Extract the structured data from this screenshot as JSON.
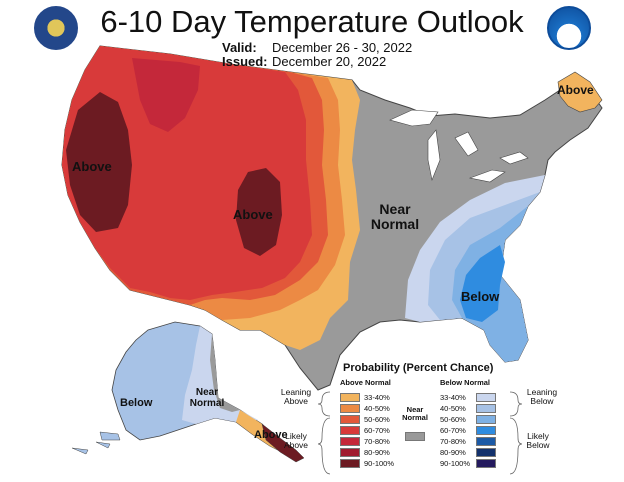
{
  "title": "6-10 Day Temperature Outlook",
  "valid_label": "Valid:",
  "valid_dates": "December 26 - 30, 2022",
  "issued_label": "Issued:",
  "issued_date": "December 20, 2022",
  "map_labels": {
    "above_west": "Above",
    "above_rockies": "Above",
    "above_maine": "Above",
    "near_normal_central": "Near Normal",
    "below_southeast": "Below",
    "below_alaska": "Below",
    "near_normal_alaska": "Near Normal",
    "above_alaska": "Above"
  },
  "legend": {
    "title": "Probability (Percent Chance)",
    "above_header": "Above Normal",
    "below_header": "Below Normal",
    "near_normal": "Near Normal",
    "leaning_above": "Leaning Above",
    "likely_above": "Likely Above",
    "leaning_below": "Leaning Below",
    "likely_below": "Likely Below",
    "above_bins": [
      {
        "label": "33-40%",
        "color": "#f2b45e"
      },
      {
        "label": "40-50%",
        "color": "#ec8a44"
      },
      {
        "label": "50-60%",
        "color": "#e2583a"
      },
      {
        "label": "60-70%",
        "color": "#d83a3a"
      },
      {
        "label": "70-80%",
        "color": "#c4283a"
      },
      {
        "label": "80-90%",
        "color": "#a01c30"
      },
      {
        "label": "90-100%",
        "color": "#6c1b22"
      }
    ],
    "below_bins": [
      {
        "label": "33-40%",
        "color": "#cad6ee"
      },
      {
        "label": "40-50%",
        "color": "#a7c2e6"
      },
      {
        "label": "50-60%",
        "color": "#7fb1e4"
      },
      {
        "label": "60-70%",
        "color": "#2f8ce0"
      },
      {
        "label": "70-80%",
        "color": "#1c5aa6"
      },
      {
        "label": "80-90%",
        "color": "#13316c"
      },
      {
        "label": "90-100%",
        "color": "#241a5e"
      }
    ],
    "near_color": "#999999"
  },
  "colors": {
    "near_normal": "#9a9a9a",
    "lakes": "#ffffff",
    "boundary": "#444444"
  }
}
